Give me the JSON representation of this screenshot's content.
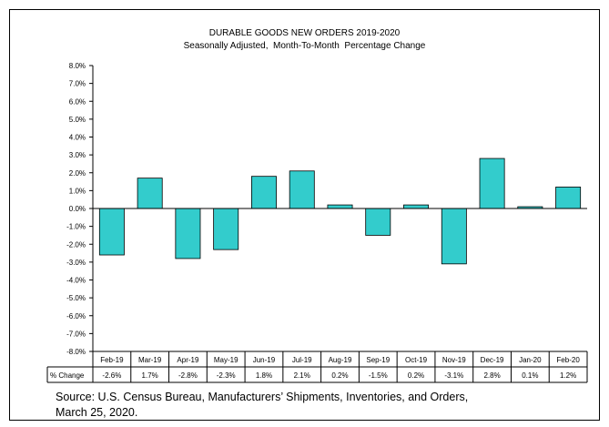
{
  "chart_data": {
    "type": "bar",
    "title": "DURABLE GOODS NEW ORDERS 2019-2020",
    "subtitle": "Seasonally Adjusted,  Month-To-Month  Percentage Change",
    "categories": [
      "Feb-19",
      "Mar-19",
      "Apr-19",
      "May-19",
      "Jun-19",
      "Jul-19",
      "Aug-19",
      "Sep-19",
      "Oct-19",
      "Nov-19",
      "Dec-19",
      "Jan-20",
      "Feb-20"
    ],
    "values": [
      -2.6,
      1.7,
      -2.8,
      -2.3,
      1.8,
      2.1,
      0.2,
      -1.5,
      0.2,
      -3.1,
      2.8,
      0.1,
      1.2
    ],
    "value_labels": [
      "-2.6%",
      "1.7%",
      "-2.8%",
      "-2.3%",
      "1.8%",
      "2.1%",
      "0.2%",
      "-1.5%",
      "0.2%",
      "-3.1%",
      "2.8%",
      "0.1%",
      "1.2%"
    ],
    "table_row_label": "% Change",
    "ylim": [
      -8,
      8
    ],
    "yticks": [
      8,
      7,
      6,
      5,
      4,
      3,
      2,
      1,
      0,
      -1,
      -2,
      -3,
      -4,
      -5,
      -6,
      -7,
      -8
    ],
    "ytick_labels": [
      "8.0%",
      "7.0%",
      "6.0%",
      "5.0%",
      "4.0%",
      "3.0%",
      "2.0%",
      "1.0%",
      "0.0%",
      "-1.0%",
      "-2.0%",
      "-3.0%",
      "-4.0%",
      "-5.0%",
      "-6.0%",
      "-7.0%",
      "-8.0%"
    ],
    "grid": false,
    "legend": "none",
    "bar_color": "#33CCCC",
    "bar_edge_color": "#000000"
  },
  "source": {
    "line1": "Source: U.S. Census Bureau, Manufacturers’ Shipments, Inventories, and Orders,",
    "line2": "March 25, 2020."
  }
}
